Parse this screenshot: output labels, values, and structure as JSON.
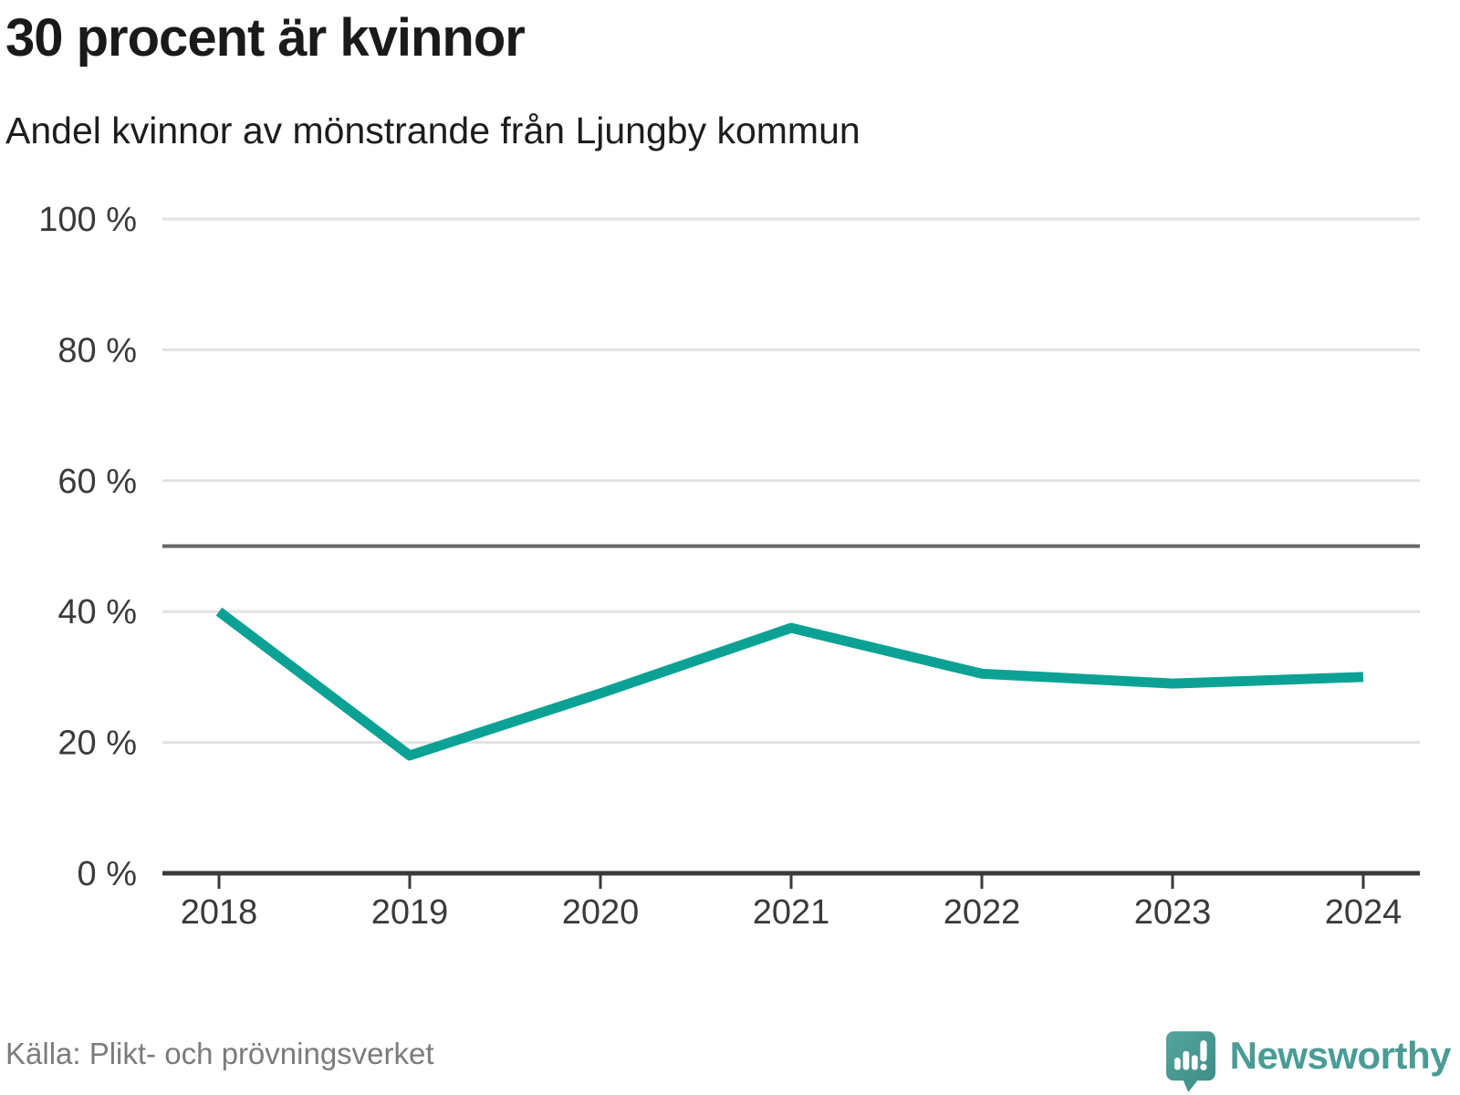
{
  "header": {
    "title": "30 procent är kvinnor",
    "subtitle": "Andel kvinnor av mönstrande från Ljungby kommun"
  },
  "footer": {
    "source": "Källa: Plikt- och prövningsverket",
    "brand": "Newsworthy"
  },
  "colors": {
    "line": "#0ba295",
    "grid": "#e2e2e2",
    "ref_line": "#65656a",
    "axis": "#3a3a3a",
    "tick_text": "#3a3a3a",
    "brand_teal": "#4a9c95",
    "muted_text": "#7b7b7b"
  },
  "chart_data": {
    "type": "line",
    "title": "30 procent är kvinnor",
    "subtitle": "Andel kvinnor av mönstrande från Ljungby kommun",
    "x": [
      2018,
      2019,
      2020,
      2021,
      2022,
      2023,
      2024
    ],
    "xtick_labels": [
      "2018",
      "2019",
      "2020",
      "2021",
      "2022",
      "2023",
      "2024"
    ],
    "series": [
      {
        "name": "Andel kvinnor",
        "values": [
          40,
          18,
          27.5,
          37.5,
          30.5,
          29,
          30
        ]
      }
    ],
    "xlabel": "",
    "ylabel": "",
    "ylim": [
      0,
      100
    ],
    "yticks": [
      0,
      20,
      40,
      60,
      80,
      100
    ],
    "ytick_labels": [
      "0 %",
      "20 %",
      "40 %",
      "60 %",
      "80 %",
      "100 %"
    ],
    "ytick_suffix": " %",
    "ref_line": 50,
    "grid": "horizontal",
    "legend": "none"
  }
}
